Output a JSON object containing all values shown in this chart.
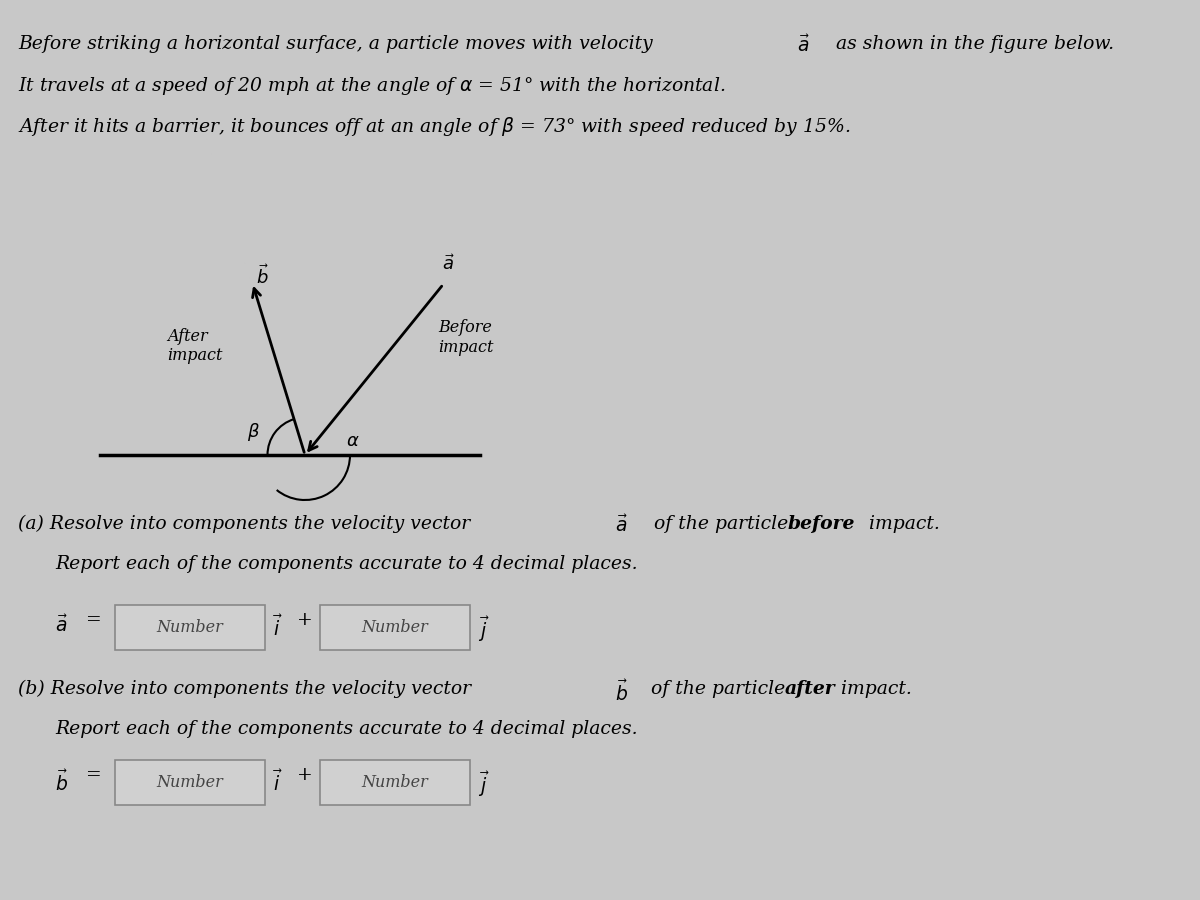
{
  "bg_color": "#c8c8c8",
  "fig_width": 12.0,
  "fig_height": 9.0,
  "line1": "Before striking a horizontal surface, a particle moves with velocity ",
  "line1_vec": "a",
  "line1_end": " as shown in the figure below.",
  "line2": "It travels at a speed of 20 mph at the angle of α = 51° with the horizontal.",
  "line3": "After it hits a barrier, it bounces off at an angle of β = 73° with speed reduced by 15%.",
  "label_before_impact": "Before\nimpact",
  "label_after_impact": "After\nimpact",
  "label_alpha": "α",
  "label_beta": "β",
  "label_vec_a": "a",
  "label_vec_b": "b",
  "part_a_line1": "(a) Resolve into components the velocity vector ",
  "part_a_vec": "a",
  "part_a_line1_end": " of the particle ",
  "part_a_bold": "before",
  "part_a_end": " impact.",
  "part_a_line2": "Report each of the components accurate to 4 decimal places.",
  "part_b_line1": "(b) Resolve into components the velocity vector ",
  "part_b_vec": "b",
  "part_b_line1_end": " of the particle ",
  "part_b_bold": "after",
  "part_b_end": " impact.",
  "part_b_line2": "Report each of the components accurate to 4 decimal places.",
  "box_label1": "Number",
  "box_label2": "Number",
  "text_color": "#000000",
  "box_color": "#d0d0d0",
  "box_edge_color": "#888888",
  "horizontal_line_color": "#000000",
  "arrow_color": "#000000",
  "alpha_deg": 51,
  "beta_deg": 73
}
